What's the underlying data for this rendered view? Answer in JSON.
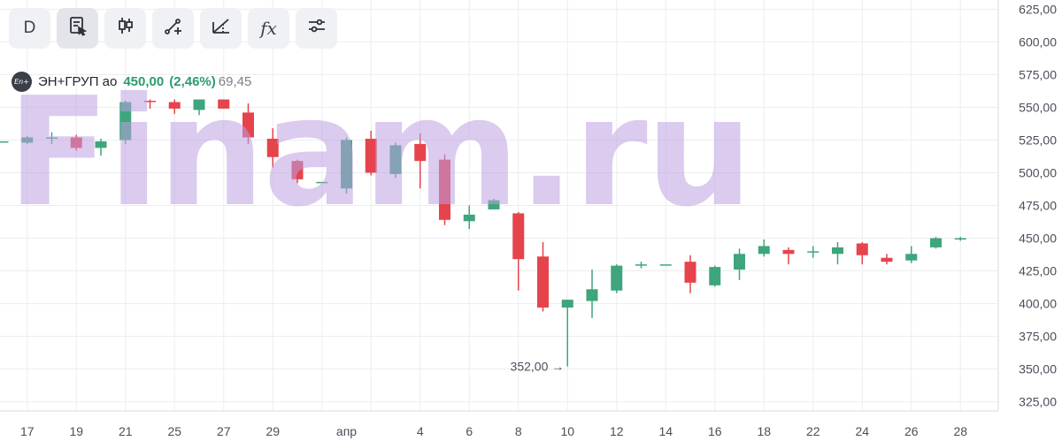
{
  "toolbar": {
    "interval_label": "D",
    "icons": [
      "notes-icon",
      "candles-icon",
      "draw-line-icon",
      "fan-icon",
      "indicators-icon",
      "settings-sliders-icon"
    ],
    "indicators_label": "fx"
  },
  "legend": {
    "logo_text": "En+",
    "name": "ЭН+ГРУП ао",
    "price": "450,00",
    "change": "(2,46%)",
    "extra": "69,45"
  },
  "watermark": "Finam.ru",
  "colors": {
    "up": "#3fa57c",
    "down": "#e5444c",
    "grid": "#ebedf0",
    "axis_text": "#4a4f59"
  },
  "chart_data": {
    "type": "candlestick",
    "ylim": [
      318,
      632
    ],
    "y_ticks": [
      325,
      350,
      375,
      400,
      425,
      450,
      475,
      500,
      525,
      550,
      575,
      600,
      625
    ],
    "y_tick_labels": [
      "325,00",
      "350,00",
      "375,00",
      "400,00",
      "425,00",
      "450,00",
      "475,00",
      "500,00",
      "525,00",
      "550,00",
      "575,00",
      "600,00",
      "625,00"
    ],
    "x_ticks": [
      1,
      3,
      5,
      7,
      9,
      11,
      13,
      15,
      17,
      19,
      21,
      23,
      25,
      27,
      29,
      31,
      33,
      35,
      37,
      39
    ],
    "x_tick_labels": [
      "17",
      "19",
      "21",
      "25",
      "27",
      "29",
      "апр",
      "4",
      "6",
      "8",
      "10",
      "12",
      "14",
      "16",
      "18",
      "22",
      "24",
      "26",
      "28"
    ],
    "x_tick_label_slots": [
      1,
      3,
      5,
      7,
      9,
      11,
      14,
      17,
      19,
      21,
      23,
      25,
      27,
      29,
      31,
      33,
      35,
      37,
      39
    ],
    "candles": [
      {
        "o": 524,
        "h": 524,
        "l": 524,
        "c": 524
      },
      {
        "o": 523,
        "h": 528,
        "l": 522,
        "c": 527
      },
      {
        "o": 527,
        "h": 531,
        "l": 522,
        "c": 527
      },
      {
        "o": 527,
        "h": 529,
        "l": 517,
        "c": 519
      },
      {
        "o": 519,
        "h": 526,
        "l": 513,
        "c": 524
      },
      {
        "o": 525,
        "h": 555,
        "l": 522,
        "c": 554
      },
      {
        "o": 555,
        "h": 556,
        "l": 549,
        "c": 554
      },
      {
        "o": 554,
        "h": 556,
        "l": 545,
        "c": 549
      },
      {
        "o": 548,
        "h": 556,
        "l": 544,
        "c": 556
      },
      {
        "o": 556,
        "h": 556,
        "l": 549,
        "c": 549
      },
      {
        "o": 546,
        "h": 553,
        "l": 522,
        "c": 527
      },
      {
        "o": 526,
        "h": 534,
        "l": 504,
        "c": 512
      },
      {
        "o": 509,
        "h": 510,
        "l": 492,
        "c": 495
      },
      {
        "o": 493,
        "h": 493,
        "l": 493,
        "c": 493
      },
      {
        "o": 488,
        "h": 527,
        "l": 484,
        "c": 525
      },
      {
        "o": 526,
        "h": 532,
        "l": 498,
        "c": 500
      },
      {
        "o": 499,
        "h": 523,
        "l": 496,
        "c": 521
      },
      {
        "o": 522,
        "h": 530,
        "l": 488,
        "c": 509
      },
      {
        "o": 510,
        "h": 514,
        "l": 460,
        "c": 464
      },
      {
        "o": 463,
        "h": 475,
        "l": 457,
        "c": 468
      },
      {
        "o": 472,
        "h": 480,
        "l": 472,
        "c": 479
      },
      {
        "o": 469,
        "h": 470,
        "l": 410,
        "c": 434
      },
      {
        "o": 436,
        "h": 447,
        "l": 394,
        "c": 397
      },
      {
        "o": 397,
        "h": 403,
        "l": 352,
        "c": 403
      },
      {
        "o": 402,
        "h": 426,
        "l": 389,
        "c": 411
      },
      {
        "o": 410,
        "h": 430,
        "l": 408,
        "c": 429
      },
      {
        "o": 430,
        "h": 432,
        "l": 427,
        "c": 430
      },
      {
        "o": 430,
        "h": 430,
        "l": 430,
        "c": 430
      },
      {
        "o": 432,
        "h": 437,
        "l": 408,
        "c": 416
      },
      {
        "o": 414,
        "h": 429,
        "l": 413,
        "c": 428
      },
      {
        "o": 426,
        "h": 442,
        "l": 418,
        "c": 438
      },
      {
        "o": 438,
        "h": 449,
        "l": 436,
        "c": 444
      },
      {
        "o": 441,
        "h": 443,
        "l": 430,
        "c": 438
      },
      {
        "o": 440,
        "h": 444,
        "l": 435,
        "c": 440
      },
      {
        "o": 438,
        "h": 447,
        "l": 430,
        "c": 443
      },
      {
        "o": 446,
        "h": 447,
        "l": 430,
        "c": 437
      },
      {
        "o": 435,
        "h": 438,
        "l": 430,
        "c": 432
      },
      {
        "o": 433,
        "h": 444,
        "l": 431,
        "c": 438
      },
      {
        "o": 443,
        "h": 451,
        "l": 442,
        "c": 450
      },
      {
        "o": 449,
        "h": 451,
        "l": 448,
        "c": 450
      }
    ],
    "annotations": [
      {
        "text": "352,00 →",
        "candle_index": 23,
        "value": 352
      }
    ]
  }
}
